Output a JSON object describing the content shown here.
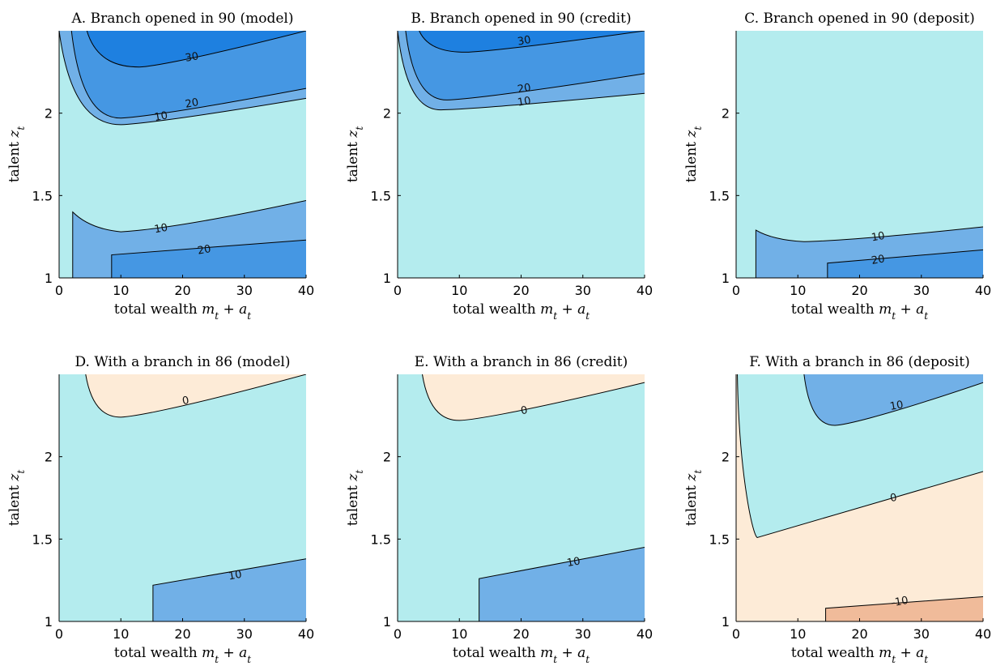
{
  "colors": {
    "level_neg10": "#F0BB9A",
    "level_0": "#FDEBD7",
    "level_base": "#B4ECEE",
    "level_10": "#71B0E7",
    "level_20": "#4597E3",
    "level_30": "#1E80E0",
    "contour_line": "#000000"
  },
  "chart_data": [
    {
      "type": "contour",
      "title": "A. Branch opened in 90 (model)",
      "xlabel": "total wealth m_t + a_t",
      "ylabel": "talent z_t",
      "xlim": [
        0,
        40
      ],
      "ylim": [
        1,
        2.5
      ],
      "xticks": [
        "0",
        "10",
        "20",
        "30",
        "40"
      ],
      "yticks": [
        "1",
        "1.5",
        "2"
      ],
      "contour_labels": [
        {
          "text": "30",
          "x": 21.5,
          "y": 2.34
        },
        {
          "text": "20",
          "x": 21.5,
          "y": 2.06
        },
        {
          "text": "10",
          "x": 16.5,
          "y": 1.98
        },
        {
          "text": "10",
          "x": 16.5,
          "y": 1.3
        },
        {
          "text": "20",
          "x": 23.5,
          "y": 1.17
        }
      ],
      "regions": [
        {
          "level": "level_10",
          "shape": "valley",
          "x_min": 10,
          "y_min": 1.93,
          "y_at_40": 2.09,
          "x_at_top": 0
        },
        {
          "level": "level_20",
          "shape": "valley",
          "x_min": 10,
          "y_min": 1.97,
          "y_at_40": 2.15,
          "x_at_top": 2
        },
        {
          "level": "level_30",
          "shape": "valley",
          "x_min": 13,
          "y_min": 2.28,
          "y_at_40": 2.5,
          "x_at_top": 4.5
        },
        {
          "level": "level_10",
          "shape": "low_cap",
          "x_left": 2.2,
          "y_left": 1.4,
          "x_min": 10,
          "y_min": 1.28,
          "y_at_40": 1.47
        },
        {
          "level": "level_20",
          "shape": "low_band",
          "x_left": 8.5,
          "y_left": 1.14,
          "y_at_40": 1.23
        }
      ]
    },
    {
      "type": "contour",
      "title": "B. Branch opened in 90 (credit)",
      "xlabel": "total wealth m_t + a_t",
      "ylabel": "talent z_t",
      "xlim": [
        0,
        40
      ],
      "ylim": [
        1,
        2.5
      ],
      "xticks": [
        "0",
        "10",
        "20",
        "30",
        "40"
      ],
      "yticks": [
        "1",
        "1.5",
        "2"
      ],
      "contour_labels": [
        {
          "text": "30",
          "x": 20.5,
          "y": 2.44
        },
        {
          "text": "20",
          "x": 20.5,
          "y": 2.15
        },
        {
          "text": "10",
          "x": 20.5,
          "y": 2.07
        }
      ],
      "regions": [
        {
          "level": "level_10",
          "shape": "valley",
          "x_min": 7,
          "y_min": 2.02,
          "y_at_40": 2.12,
          "x_at_top": 0
        },
        {
          "level": "level_20",
          "shape": "valley",
          "x_min": 8,
          "y_min": 2.08,
          "y_at_40": 2.24,
          "x_at_top": 1.3
        },
        {
          "level": "level_30",
          "shape": "valley",
          "x_min": 11,
          "y_min": 2.37,
          "y_at_40": 2.5,
          "x_at_top": 3.5
        }
      ]
    },
    {
      "type": "contour",
      "title": "C. Branch opened in 90 (deposit)",
      "xlabel": "total wealth m_t + a_t",
      "ylabel": "talent z_t",
      "xlim": [
        0,
        40
      ],
      "ylim": [
        1,
        2.5
      ],
      "xticks": [
        "0",
        "10",
        "20",
        "30",
        "40"
      ],
      "yticks": [
        "1",
        "1.5",
        "2"
      ],
      "contour_labels": [
        {
          "text": "10",
          "x": 23,
          "y": 1.25
        },
        {
          "text": "20",
          "x": 23,
          "y": 1.11
        }
      ],
      "regions": [
        {
          "level": "level_10",
          "shape": "low_cap",
          "x_left": 3.2,
          "y_left": 1.29,
          "x_min": 11,
          "y_min": 1.22,
          "y_at_40": 1.31
        },
        {
          "level": "level_20",
          "shape": "low_band",
          "x_left": 14.8,
          "y_left": 1.09,
          "y_at_40": 1.17
        }
      ]
    },
    {
      "type": "contour",
      "title": "D. With a branch in 86 (model)",
      "xlabel": "total wealth m_t + a_t",
      "ylabel": "talent z_t",
      "xlim": [
        0,
        40
      ],
      "ylim": [
        1,
        2.5
      ],
      "xticks": [
        "0",
        "10",
        "20",
        "30",
        "40"
      ],
      "yticks": [
        "1",
        "1.5",
        "2"
      ],
      "contour_labels": [
        {
          "text": "0",
          "x": 20.5,
          "y": 2.34
        },
        {
          "text": "10",
          "x": 28.5,
          "y": 1.28
        }
      ],
      "regions": [
        {
          "level": "level_0",
          "shape": "valley",
          "x_min": 10,
          "y_min": 2.24,
          "y_at_40": 2.5,
          "x_at_top": 4.3
        },
        {
          "level": "level_10",
          "shape": "low_band",
          "x_left": 15.2,
          "y_left": 1.22,
          "y_at_40": 1.38
        }
      ]
    },
    {
      "type": "contour",
      "title": "E. With a branch in 86 (credit)",
      "xlabel": "total wealth m_t + a_t",
      "ylabel": "talent z_t",
      "xlim": [
        0,
        40
      ],
      "ylim": [
        1,
        2.5
      ],
      "xticks": [
        "0",
        "10",
        "20",
        "30",
        "40"
      ],
      "yticks": [
        "1",
        "1.5",
        "2"
      ],
      "contour_labels": [
        {
          "text": "0",
          "x": 20.5,
          "y": 2.28
        },
        {
          "text": "10",
          "x": 28.5,
          "y": 1.36
        }
      ],
      "regions": [
        {
          "level": "level_0",
          "shape": "valley",
          "x_min": 10,
          "y_min": 2.22,
          "y_at_40": 2.45,
          "x_at_top": 4
        },
        {
          "level": "level_10",
          "shape": "low_band",
          "x_left": 13.2,
          "y_left": 1.26,
          "y_at_40": 1.45
        }
      ]
    },
    {
      "type": "contour",
      "title": "F. With a branch in 86 (deposit)",
      "xlabel": "total wealth m_t + a_t",
      "ylabel": "talent z_t",
      "xlim": [
        0,
        40
      ],
      "ylim": [
        1,
        2.5
      ],
      "xticks": [
        "0",
        "10",
        "20",
        "30",
        "40"
      ],
      "yticks": [
        "1",
        "1.5",
        "2"
      ],
      "contour_labels": [
        {
          "text": "10",
          "x": 26,
          "y": 2.31
        },
        {
          "text": "0",
          "x": 25.5,
          "y": 1.75
        },
        {
          "text": "-10",
          "x": 26.5,
          "y": 1.12
        }
      ],
      "regions": [
        {
          "level": "level_0",
          "shape": "full"
        },
        {
          "level": "level_base",
          "shape": "wedge",
          "x_min": 3.5,
          "y_min": 1.51,
          "y_at_40": 1.91,
          "x_at_top": 0.2
        },
        {
          "level": "level_10",
          "shape": "valley",
          "x_min": 16,
          "y_min": 2.19,
          "y_at_40": 2.45,
          "x_at_top": 11
        }
      ],
      "extra_regions": [
        {
          "level": "level_neg10",
          "shape": "low_band",
          "x_left": 14.5,
          "y_left": 1.08,
          "y_at_40": 1.15
        }
      ]
    }
  ]
}
